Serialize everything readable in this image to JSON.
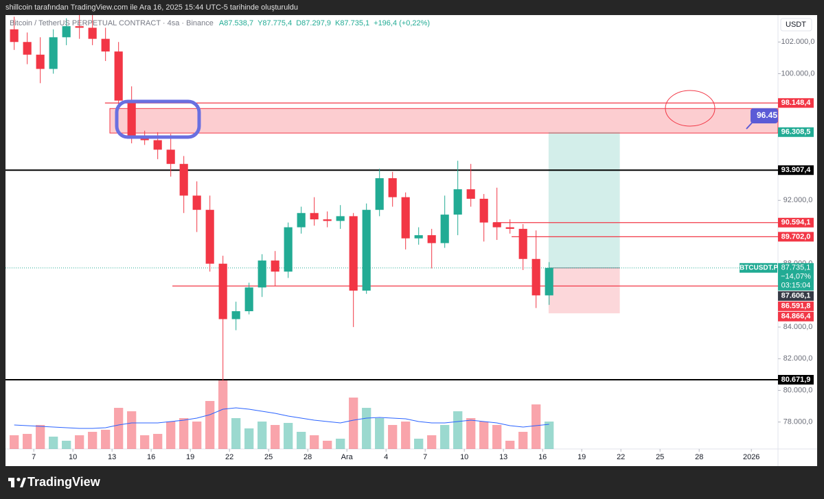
{
  "header": {
    "text": "shillcoin tarafından TradingView.com ile Ara 16, 2025 15:44 UTC-5 tarihinde oluşturuldu"
  },
  "footer": {
    "brand": "TradingView"
  },
  "chart_data": {
    "type": "candlestick",
    "symbol": "Bitcoin / TetherUS PERPETUAL CONTRACT · 4sa · Binance",
    "ohlc_legend": [
      "A87.538,7",
      "Y87.775,4",
      "D87.297,9",
      "K87.735,1",
      "+196,4 (+0,22%)"
    ],
    "currency": "USDT",
    "x": [
      "2025-11-05",
      "2025-11-06",
      "2025-11-07",
      "2025-11-08",
      "2025-11-09",
      "2025-11-10",
      "2025-11-11",
      "2025-11-12",
      "2025-11-13",
      "2025-11-14",
      "2025-11-15",
      "2025-11-16",
      "2025-11-17",
      "2025-11-18",
      "2025-11-19",
      "2025-11-20",
      "2025-11-21",
      "2025-11-22",
      "2025-11-23",
      "2025-11-24",
      "2025-11-25",
      "2025-11-26",
      "2025-11-27",
      "2025-11-28",
      "2025-11-29",
      "2025-11-30",
      "2025-12-01",
      "2025-12-02",
      "2025-12-03",
      "2025-12-04",
      "2025-12-05",
      "2025-12-06",
      "2025-12-07",
      "2025-12-08",
      "2025-12-09",
      "2025-12-10",
      "2025-12-11",
      "2025-12-12",
      "2025-12-13",
      "2025-12-14",
      "2025-12-15",
      "2025-12-16"
    ],
    "open": [
      102800,
      102000,
      101200,
      100300,
      102300,
      103000,
      102900,
      102200,
      101400,
      98300,
      96000,
      95800,
      95200,
      94300,
      92300,
      91400,
      88000,
      84500,
      85000,
      86500,
      88200,
      87500,
      90300,
      91200,
      90800,
      90700,
      91000,
      86300,
      91400,
      93400,
      92200,
      89600,
      89800,
      89300,
      91100,
      92700,
      92100,
      90600,
      90300,
      90200,
      88300,
      86000
    ],
    "high": [
      103600,
      102600,
      102300,
      102800,
      103500,
      103700,
      103700,
      102900,
      102000,
      99200,
      96400,
      96300,
      96200,
      94800,
      93200,
      92300,
      88500,
      85600,
      86800,
      88600,
      88800,
      90600,
      91600,
      92200,
      91300,
      91700,
      91200,
      91800,
      94000,
      93800,
      92500,
      90300,
      90200,
      92300,
      94500,
      94300,
      92400,
      92800,
      90800,
      90500,
      90100,
      88100
    ],
    "low": [
      101500,
      100600,
      99400,
      100000,
      101800,
      102200,
      101800,
      100800,
      97800,
      95600,
      95500,
      94600,
      93500,
      91200,
      90000,
      87500,
      80600,
      83800,
      84800,
      85900,
      86600,
      87100,
      89900,
      90400,
      90300,
      90200,
      84000,
      86100,
      91000,
      91600,
      88900,
      89200,
      87700,
      89000,
      89800,
      91600,
      89400,
      89500,
      89900,
      87600,
      85200,
      85400
    ],
    "close": [
      102000,
      101200,
      100300,
      102300,
      103000,
      102900,
      102200,
      101400,
      98300,
      96000,
      95800,
      95200,
      94300,
      92300,
      91400,
      88000,
      84500,
      85000,
      86500,
      88200,
      87500,
      90300,
      91200,
      90800,
      90700,
      91000,
      86300,
      91400,
      93400,
      92200,
      89600,
      89800,
      89300,
      91100,
      92700,
      92100,
      90600,
      90300,
      90200,
      88300,
      86000,
      87735.1
    ],
    "up_color": "#22ab94",
    "down_color": "#f23645",
    "volume": [
      20,
      22,
      35,
      18,
      12,
      20,
      25,
      28,
      60,
      55,
      20,
      22,
      40,
      45,
      40,
      70,
      100,
      45,
      30,
      40,
      35,
      38,
      25,
      20,
      12,
      15,
      75,
      60,
      45,
      35,
      40,
      15,
      20,
      35,
      55,
      45,
      40,
      35,
      12,
      25,
      65,
      40
    ],
    "volume_ma": [
      35,
      34,
      33,
      32,
      31,
      30,
      30,
      31,
      35,
      38,
      38,
      38,
      40,
      42,
      45,
      50,
      58,
      60,
      58,
      55,
      52,
      48,
      45,
      42,
      40,
      38,
      42,
      45,
      46,
      45,
      44,
      40,
      38,
      38,
      40,
      42,
      40,
      38,
      34,
      32,
      34,
      36
    ],
    "volume_ma_color": "#2962ff",
    "volume_lim": [
      0,
      100
    ],
    "xlim": [
      "2025-11-04T20:00:00Z",
      "2026-01-03T01:00:00Z"
    ],
    "xticks": [
      {
        "value": "2025-11-07",
        "label": "7"
      },
      {
        "value": "2025-11-10",
        "label": "10"
      },
      {
        "value": "2025-11-13",
        "label": "13"
      },
      {
        "value": "2025-11-16",
        "label": "16"
      },
      {
        "value": "2025-11-19",
        "label": "19"
      },
      {
        "value": "2025-11-22",
        "label": "22"
      },
      {
        "value": "2025-11-25",
        "label": "25"
      },
      {
        "value": "2025-11-28",
        "label": "28"
      },
      {
        "value": "2025-12-01",
        "label": "Ara"
      },
      {
        "value": "2025-12-04",
        "label": "4"
      },
      {
        "value": "2025-12-07",
        "label": "7"
      },
      {
        "value": "2025-12-10",
        "label": "10"
      },
      {
        "value": "2025-12-13",
        "label": "13"
      },
      {
        "value": "2025-12-16",
        "label": "16"
      },
      {
        "value": "2025-12-19",
        "label": "19"
      },
      {
        "value": "2025-12-22",
        "label": "22"
      },
      {
        "value": "2025-12-25",
        "label": "25"
      },
      {
        "value": "2025-12-28",
        "label": "28"
      },
      {
        "value": "2026-01-01",
        "label": "2026"
      }
    ],
    "ylim": [
      76300,
      103700
    ],
    "yticks": [
      {
        "value": 78000,
        "label": "78.000,0"
      },
      {
        "value": 80000,
        "label": "80.000,0"
      },
      {
        "value": 82000,
        "label": "82.000,0"
      },
      {
        "value": 84000,
        "label": "84.000,0"
      },
      {
        "value": 88000,
        "label": "88.000,0"
      },
      {
        "value": 92000,
        "label": "92.000,0"
      },
      {
        "value": 100000,
        "label": "100.000,0"
      },
      {
        "value": 102000,
        "label": "102.000,0"
      }
    ],
    "levels": [
      {
        "value": 98148.4,
        "label": "98.148,4",
        "color": "#f23645",
        "from": "2025-11-12T11:00:00Z",
        "line": true
      },
      {
        "value": 96308.5,
        "label": "96.308,5",
        "color": "#22ab94",
        "line": false
      },
      {
        "value": 93907.4,
        "label": "93.907,4",
        "color": "#000000",
        "from": "2025-11-04T20:00:00Z",
        "line": true
      },
      {
        "value": 90594.1,
        "label": "90.594,1",
        "color": "#f23645",
        "from": "2025-12-12T05:00:00Z",
        "line": true
      },
      {
        "value": 89702.0,
        "label": "89.702,0",
        "color": "#f23645",
        "from": "2025-12-13T15:00:00Z",
        "line": true
      },
      {
        "value": 87606.1,
        "label": "87.606,1",
        "color": "#363a45",
        "line": false
      },
      {
        "value": 86591.8,
        "label": "86.591,8",
        "color": "#f23645",
        "from": "2025-11-17T15:00:00Z",
        "line": true
      },
      {
        "value": 84866.4,
        "label": "84.866,4",
        "color": "#f23645",
        "line": false
      },
      {
        "value": 80671.9,
        "label": "80.671,9",
        "color": "#000000",
        "from": "2025-11-04T20:00:00Z",
        "line": true
      }
    ],
    "zone": {
      "from": "2025-11-12T20:00:00Z",
      "top": 97800,
      "bottom": 96250
    },
    "position": {
      "start": "2025-12-16T11:00:00Z",
      "end": "2025-12-21T22:00:00Z",
      "entry": 87735.1,
      "target": 96308.5,
      "stop": 84866.4
    },
    "last_price": {
      "label": "BTCUSDT.P",
      "value": 87735.1,
      "value_label": "87.735,1",
      "change": "−14,07%",
      "countdown": "03:15:04",
      "color": "#22ab94"
    },
    "annotation": {
      "text": "96.45"
    }
  }
}
